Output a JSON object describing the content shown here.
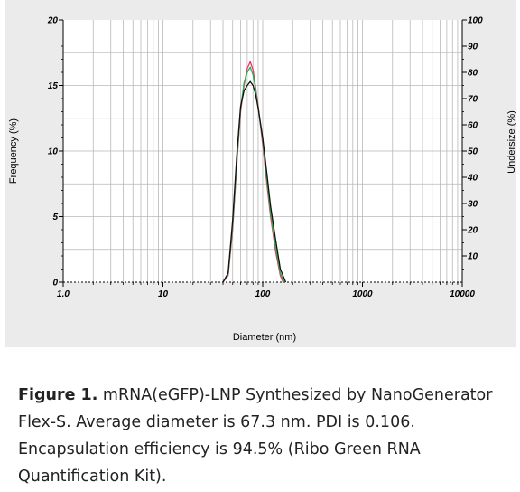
{
  "chart_data": {
    "type": "line",
    "x_scale": "log",
    "xlim": [
      1,
      10000
    ],
    "ylim": [
      0,
      20
    ],
    "y2lim": [
      0,
      100
    ],
    "xlabel": "Diameter (nm)",
    "ylabel": "Frequency (%)",
    "y2label": "Undersize (%)",
    "x_ticks": [
      "1.0",
      "10",
      "100",
      "1000",
      "10000"
    ],
    "y_ticks": [
      "0",
      "5",
      "10",
      "15",
      "20"
    ],
    "y2_ticks": [
      "10",
      "20",
      "30",
      "40",
      "50",
      "60",
      "70",
      "80",
      "90",
      "100"
    ],
    "grid": true,
    "series": [
      {
        "color": "#ff2a6d",
        "x": [
          40,
          45,
          50,
          55,
          60,
          65,
          70,
          75,
          80,
          85,
          90,
          100,
          110,
          120,
          135,
          150,
          160
        ],
        "y": [
          0,
          0.5,
          4.0,
          9.0,
          13.0,
          15.0,
          16.3,
          16.8,
          16.2,
          14.8,
          13.5,
          10.5,
          7.5,
          5.0,
          2.3,
          0.5,
          0
        ]
      },
      {
        "color": "#22b14c",
        "x": [
          40,
          45,
          50,
          55,
          60,
          65,
          70,
          75,
          80,
          85,
          90,
          100,
          110,
          120,
          135,
          150,
          165
        ],
        "y": [
          0,
          0.6,
          4.3,
          9.2,
          13.2,
          15.2,
          16.0,
          16.4,
          15.8,
          14.7,
          13.3,
          10.8,
          7.8,
          5.3,
          2.6,
          0.7,
          0
        ]
      },
      {
        "color": "#111111",
        "x": [
          40,
          45,
          50,
          55,
          60,
          65,
          70,
          75,
          80,
          85,
          90,
          100,
          110,
          120,
          135,
          150,
          170
        ],
        "y": [
          0,
          0.7,
          4.7,
          9.7,
          13.4,
          14.6,
          15.0,
          15.3,
          15.0,
          14.3,
          13.3,
          11.0,
          8.3,
          5.8,
          3.2,
          1.0,
          0
        ]
      }
    ]
  },
  "caption": {
    "label": "Figure 1.",
    "text": " mRNA(eGFP)-LNP Synthesized by NanoGenerator Flex-S. Average diameter is 67.3 nm. PDI is 0.106. Encapsulation efficiency is 94.5% (Ribo Green RNA Quantification Kit)."
  }
}
